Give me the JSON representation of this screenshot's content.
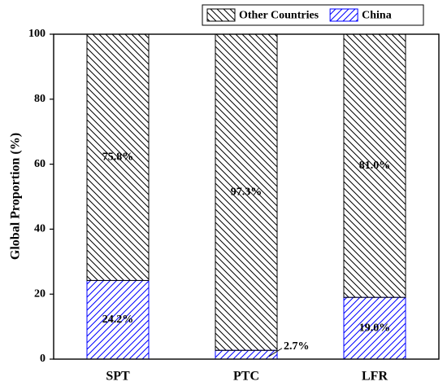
{
  "chart_data": {
    "type": "stacked-bar",
    "y_label": "Global Proportion (%)",
    "categories": [
      "SPT",
      "PTC",
      "LFR"
    ],
    "series": [
      {
        "name": "China",
        "color": "#0000ff",
        "hatch": "/",
        "values": [
          24.2,
          2.7,
          19.0
        ],
        "value_labels": [
          "24.2%",
          "2.7%",
          "19.0%"
        ]
      },
      {
        "name": "Other Countries",
        "color": "#000000",
        "hatch": "\\",
        "values": [
          75.8,
          97.3,
          81.0
        ],
        "value_labels": [
          "75.8%",
          "97.3%",
          "81.0%"
        ]
      }
    ],
    "ylim": [
      0,
      100
    ],
    "yticks": [
      0,
      20,
      40,
      60,
      80,
      100
    ],
    "legend": "top-right"
  }
}
